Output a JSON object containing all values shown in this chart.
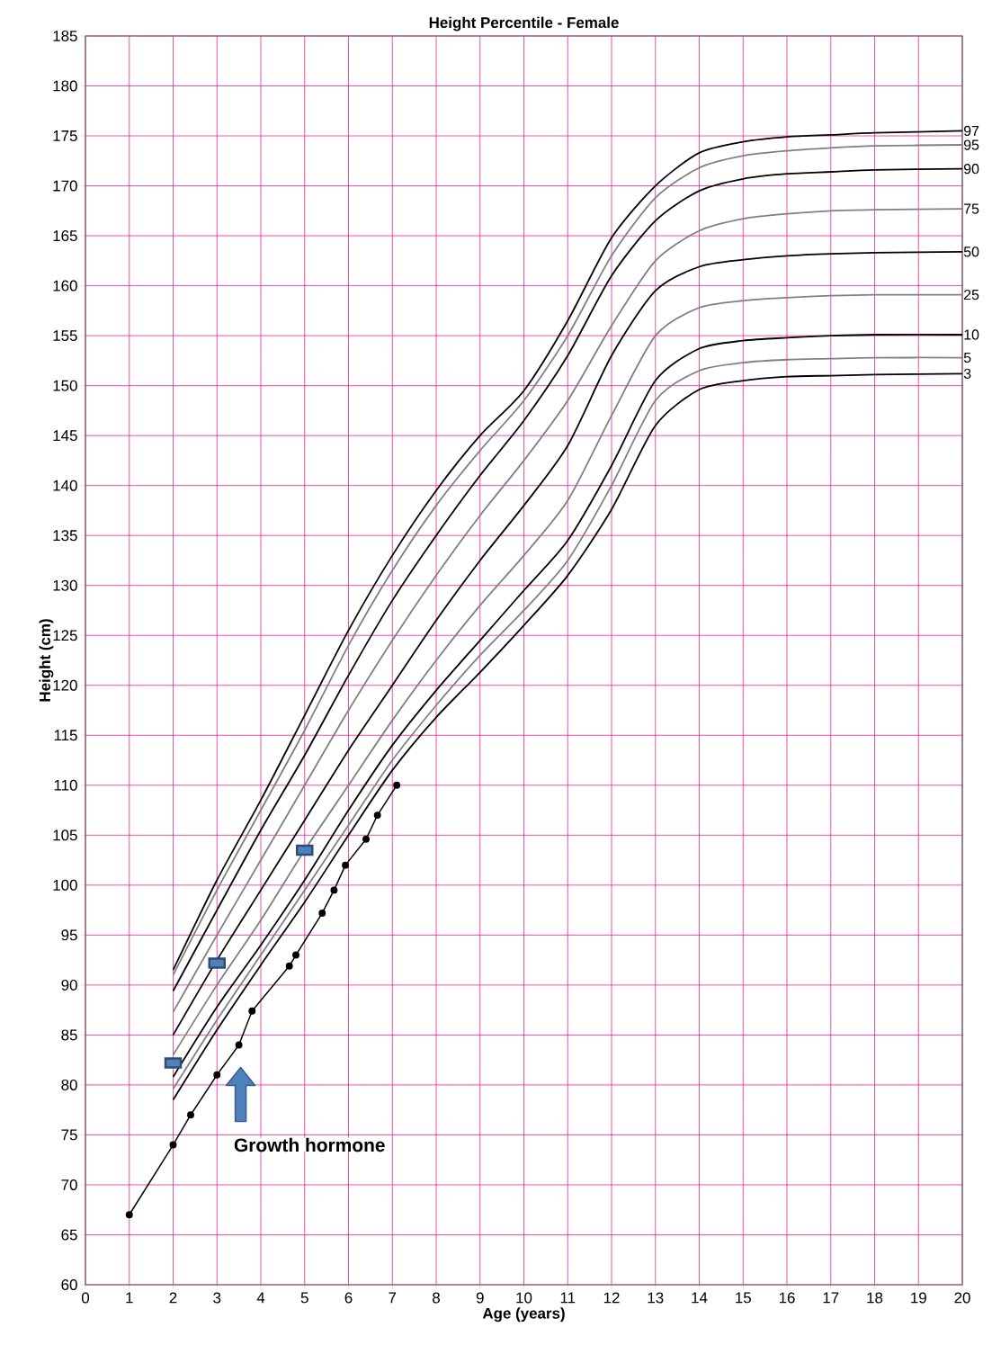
{
  "chart_data": {
    "type": "line",
    "title": "Height Percentile - Female",
    "xlabel": "Age (years)",
    "ylabel": "Height (cm)",
    "xlim": [
      0,
      20
    ],
    "ylim": [
      60,
      185
    ],
    "xticks": [
      0,
      1,
      2,
      3,
      4,
      5,
      6,
      7,
      8,
      9,
      10,
      11,
      12,
      13,
      14,
      15,
      16,
      17,
      18,
      19,
      20
    ],
    "yticks": [
      60,
      65,
      70,
      75,
      80,
      85,
      90,
      95,
      100,
      105,
      110,
      115,
      120,
      125,
      130,
      135,
      140,
      145,
      150,
      155,
      160,
      165,
      170,
      175,
      180,
      185
    ],
    "grid": true,
    "annotations": [
      "Growth hormone"
    ],
    "series": [
      {
        "name": "97",
        "color": "#000000",
        "marker": "none",
        "x": [
          2,
          3,
          4,
          5,
          6,
          7,
          8,
          9,
          10,
          11,
          12,
          13,
          14,
          15,
          16,
          17,
          18,
          20
        ],
        "values": [
          91.5,
          100.5,
          108.5,
          117,
          125.5,
          133,
          139.5,
          145,
          149.5,
          156.5,
          164.8,
          170,
          173.3,
          174.4,
          174.9,
          175.1,
          175.3,
          175.5
        ]
      },
      {
        "name": "95",
        "color": "#808080",
        "marker": "none",
        "x": [
          2,
          3,
          4,
          5,
          6,
          7,
          8,
          9,
          10,
          11,
          12,
          13,
          14,
          15,
          16,
          17,
          18,
          20
        ],
        "values": [
          91.0,
          99.5,
          107.5,
          115.5,
          124,
          131.5,
          138,
          143.5,
          148.5,
          155,
          163,
          168.8,
          171.8,
          173,
          173.5,
          173.8,
          174,
          174.1
        ]
      },
      {
        "name": "90",
        "color": "#000000",
        "marker": "none",
        "x": [
          2,
          3,
          4,
          5,
          6,
          7,
          8,
          9,
          10,
          11,
          12,
          13,
          14,
          15,
          16,
          17,
          18,
          20
        ],
        "values": [
          89.4,
          97.5,
          105.5,
          113,
          121,
          128.5,
          135,
          141,
          146.5,
          153,
          161,
          166.5,
          169.5,
          170.7,
          171.2,
          171.4,
          171.6,
          171.7
        ]
      },
      {
        "name": "75",
        "color": "#808080",
        "marker": "none",
        "x": [
          2,
          3,
          4,
          5,
          6,
          7,
          8,
          9,
          10,
          11,
          12,
          13,
          14,
          15,
          16,
          17,
          18,
          20
        ],
        "values": [
          87.3,
          95,
          102.5,
          110,
          117.5,
          124.5,
          131,
          137,
          142.5,
          148.5,
          156,
          162.5,
          165.5,
          166.7,
          167.2,
          167.5,
          167.6,
          167.7
        ]
      },
      {
        "name": "50",
        "color": "#000000",
        "marker": "none",
        "x": [
          2,
          3,
          4,
          5,
          6,
          7,
          8,
          9,
          10,
          11,
          12,
          13,
          14,
          15,
          16,
          17,
          18,
          20
        ],
        "values": [
          85,
          92.5,
          99.5,
          106.5,
          113.5,
          120,
          126.5,
          132.5,
          138,
          144,
          153,
          159.5,
          161.9,
          162.6,
          163,
          163.2,
          163.3,
          163.4
        ]
      },
      {
        "name": "25",
        "color": "#808080",
        "marker": "none",
        "x": [
          2,
          3,
          4,
          5,
          6,
          7,
          8,
          9,
          10,
          11,
          12,
          13,
          14,
          15,
          16,
          17,
          18,
          20
        ],
        "values": [
          83,
          90,
          96.5,
          103.5,
          110,
          116.5,
          122.5,
          128,
          133,
          138.5,
          147,
          155,
          157.8,
          158.5,
          158.8,
          159,
          159.1,
          159.1
        ]
      },
      {
        "name": "10",
        "color": "#000000",
        "marker": "none",
        "x": [
          2,
          3,
          4,
          5,
          6,
          7,
          8,
          9,
          10,
          11,
          12,
          13,
          14,
          15,
          16,
          17,
          18,
          20
        ],
        "values": [
          80.8,
          87.8,
          94,
          100.5,
          107.5,
          114,
          119.5,
          124.5,
          129.5,
          134.5,
          142,
          150.5,
          153.7,
          154.5,
          154.8,
          155,
          155.1,
          155.1
        ]
      },
      {
        "name": "5",
        "color": "#808080",
        "marker": "none",
        "x": [
          2,
          3,
          4,
          5,
          6,
          7,
          8,
          9,
          10,
          11,
          12,
          13,
          14,
          15,
          16,
          17,
          18,
          20
        ],
        "values": [
          79.6,
          86.5,
          93,
          99.5,
          106,
          112.5,
          118,
          123,
          127.5,
          132.5,
          140,
          148.5,
          151.5,
          152.3,
          152.6,
          152.7,
          152.8,
          152.8
        ]
      },
      {
        "name": "3",
        "color": "#000000",
        "marker": "none",
        "x": [
          2,
          3,
          4,
          5,
          6,
          7,
          8,
          9,
          10,
          11,
          12,
          13,
          14,
          15,
          16,
          17,
          18,
          20
        ],
        "values": [
          78.5,
          85.5,
          92,
          98.3,
          105,
          111.5,
          116.8,
          121.3,
          126,
          131,
          137.6,
          146,
          149.6,
          150.5,
          150.9,
          151,
          151.1,
          151.2
        ]
      },
      {
        "color": "#000000",
        "marker": "circle",
        "x": [
          1,
          2,
          2.4,
          3,
          3.5,
          3.8,
          4.65,
          4.8,
          5.4,
          5.67,
          5.93,
          6.4,
          6.66,
          7.1
        ],
        "values": [
          67,
          74,
          77,
          81,
          84,
          87.4,
          91.9,
          93,
          97.2,
          99.5,
          102,
          104.6,
          107,
          110
        ]
      },
      {
        "type": "scatter",
        "color": "#4f81bd",
        "marker": "square",
        "x": [
          2,
          3,
          5
        ],
        "values": [
          82.2,
          92.2,
          103.5
        ]
      }
    ]
  }
}
